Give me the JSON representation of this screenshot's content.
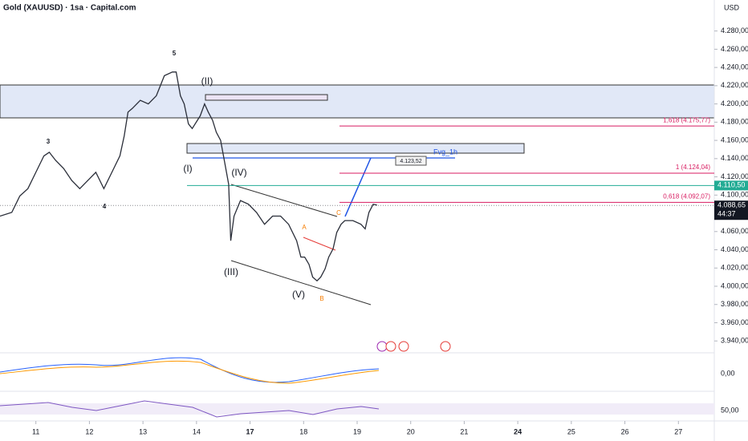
{
  "header": {
    "title": "Gold (XAUUSD) · 1sa · Capital.com",
    "currency": "USD"
  },
  "chart_data": {
    "type": "line",
    "color": "#2a2e39",
    "x": [
      -0.67,
      -0.45,
      -0.3,
      -0.15,
      0,
      0.15,
      0.25,
      0.37,
      0.52,
      0.67,
      0.82,
      0.97,
      1.12,
      1.27,
      1.42,
      1.57,
      1.65,
      1.72,
      1.8,
      1.95,
      2.1,
      2.25,
      2.4,
      2.55,
      2.62,
      2.7,
      2.77,
      2.85,
      2.92,
      3.07,
      3.15,
      3.22,
      3.3,
      3.37,
      3.45,
      3.52,
      3.6,
      3.64,
      3.7,
      3.82,
      3.97,
      4.12,
      4.27,
      4.42,
      4.57,
      4.72,
      4.87,
      4.95,
      5.02,
      5.1,
      5.17,
      5.25,
      5.32,
      5.4,
      5.47,
      5.55,
      5.62,
      5.7,
      5.77,
      5.92,
      6.07,
      6.15,
      6.22,
      6.3,
      6.37
    ],
    "values": [
      4077,
      4081,
      4099,
      4107,
      4125,
      4143,
      4147,
      4138,
      4129,
      4116,
      4107,
      4116,
      4125,
      4107,
      4125,
      4143,
      4165,
      4191,
      4195,
      4204,
      4200,
      4209,
      4231,
      4235,
      4235,
      4209,
      4200,
      4178,
      4173,
      4187,
      4200,
      4191,
      4182,
      4169,
      4160,
      4138,
      4112,
      4050,
      4077,
      4094,
      4090,
      4081,
      4068,
      4077,
      4077,
      4068,
      4050,
      4032,
      4032,
      4024,
      4010,
      4006,
      4010,
      4019,
      4032,
      4041,
      4059,
      4068,
      4072,
      4072,
      4068,
      4063,
      4081,
      4090,
      4089
    ],
    "xlim": [
      -0.67,
      12.67
    ],
    "xticks": [
      {
        "value": 0,
        "label": "11"
      },
      {
        "value": 1,
        "label": "12"
      },
      {
        "value": 2,
        "label": "13"
      },
      {
        "value": 3,
        "label": "14"
      },
      {
        "value": 4,
        "label": "17"
      },
      {
        "value": 5,
        "label": "18"
      },
      {
        "value": 6,
        "label": "19"
      },
      {
        "value": 7,
        "label": "20"
      },
      {
        "value": 8,
        "label": "21"
      },
      {
        "value": 9,
        "label": "24"
      },
      {
        "value": 10,
        "label": "25"
      },
      {
        "value": 11,
        "label": "26"
      },
      {
        "value": 12,
        "label": "27"
      }
    ],
    "ylim": [
      3927,
      4314
    ],
    "yticks": [
      {
        "value": 3940,
        "label": "3.940,00"
      },
      {
        "value": 3960,
        "label": "3.960,00"
      },
      {
        "value": 3980,
        "label": "3.980,00"
      },
      {
        "value": 4000,
        "label": "4.000,00"
      },
      {
        "value": 4020,
        "label": "4.020,00"
      },
      {
        "value": 4040,
        "label": "4.040,00"
      },
      {
        "value": 4060,
        "label": "4.060,00"
      },
      {
        "value": 4080,
        "label": "4.080,00"
      },
      {
        "value": 4100,
        "label": "4.100,00"
      },
      {
        "value": 4120,
        "label": "4.120,00"
      },
      {
        "value": 4140,
        "label": "4.140,00"
      },
      {
        "value": 4160,
        "label": "4.160,00"
      },
      {
        "value": 4180,
        "label": "4.180,00"
      },
      {
        "value": 4200,
        "label": "4.200,00"
      },
      {
        "value": 4220,
        "label": "4.220,00"
      },
      {
        "value": 4240,
        "label": "4.240,00"
      },
      {
        "value": 4260,
        "label": "4.260,00"
      },
      {
        "value": 4280,
        "label": "4.280,00"
      }
    ],
    "price_labels": [
      {
        "value": 4110.5,
        "label": "4.110,50",
        "color": "#22ab94"
      },
      {
        "value": 4088.65,
        "label": "4.088,65",
        "color": "#131722"
      }
    ],
    "countdown": "44:37",
    "fib_levels": [
      {
        "value": 4175.77,
        "label": "1,618 (4.175,77)"
      },
      {
        "value": 4124.04,
        "label": "1 (4.124,04)"
      },
      {
        "value": 4092.07,
        "label": "0,618 (4.092,07)"
      }
    ],
    "annotations": [
      "5",
      "3",
      "4",
      "(II)",
      "(I)",
      "(IV)",
      "(III)",
      "(V)",
      "A",
      "B",
      "C",
      "Fvg_1h",
      "4.123,52"
    ],
    "indicator_labels": [
      "0,00",
      "50,00"
    ]
  }
}
